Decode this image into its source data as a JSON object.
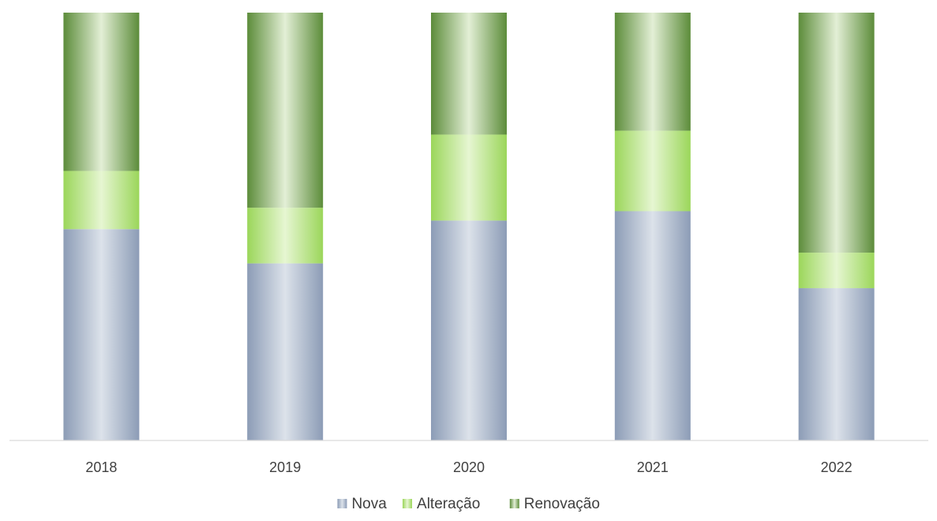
{
  "chart_data": {
    "type": "bar",
    "stacked": true,
    "percent_stacked": true,
    "categories": [
      "2018",
      "2019",
      "2020",
      "2021",
      "2022"
    ],
    "series": [
      {
        "name": "Nova",
        "values": [
          49.4,
          41.4,
          51.4,
          53.6,
          35.6
        ]
      },
      {
        "name": "Alteração",
        "values": [
          13.6,
          13.0,
          20.1,
          18.8,
          8.3
        ]
      },
      {
        "name": "Renovação",
        "values": [
          37.0,
          45.6,
          28.5,
          27.6,
          56.1
        ]
      }
    ],
    "ylim": [
      0,
      100
    ],
    "grid": false,
    "y_axis_visible": false,
    "legend_position": "bottom",
    "colors": {
      "Nova": {
        "edge": "#8c9cb6",
        "mid": "#dce2ea"
      },
      "Alteração": {
        "edge": "#9bd65a",
        "mid": "#e6f6d2"
      },
      "Renovação": {
        "edge": "#5c8c3a",
        "mid": "#e3efd6"
      },
      "axis": "#d9d9d9",
      "text": "#404040"
    }
  }
}
